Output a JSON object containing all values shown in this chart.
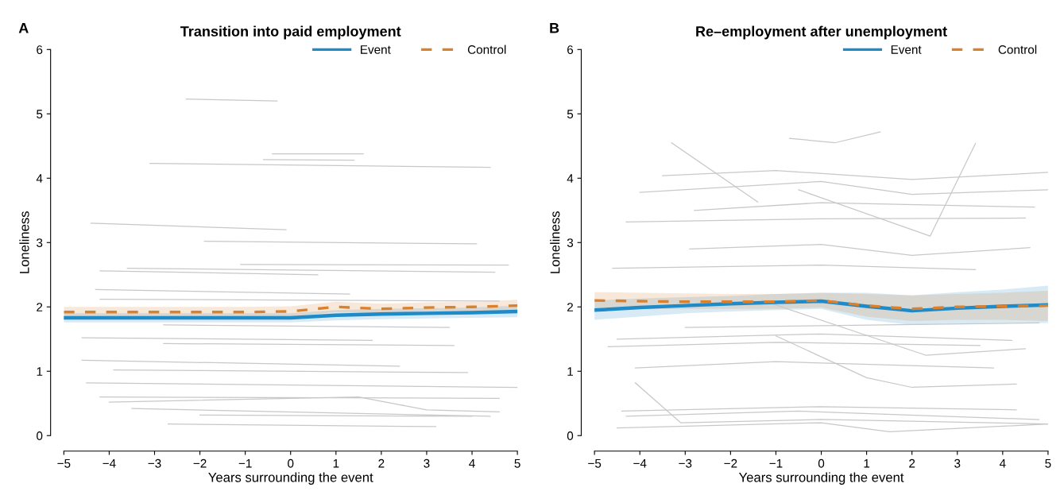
{
  "chart_data": [
    {
      "type": "line",
      "title": "Transition into paid employment",
      "annotations": [
        "A"
      ],
      "xlabel": "Years surrounding the event",
      "ylabel": "Loneliness",
      "xlim": [
        -5,
        5
      ],
      "xticks": [
        -5,
        -4,
        -3,
        -2,
        -1,
        0,
        1,
        2,
        3,
        4,
        5
      ],
      "ylim": [
        0,
        6
      ],
      "yticks": [
        0,
        1,
        2,
        3,
        4,
        5,
        6
      ],
      "grid": false,
      "legend": "top right",
      "x": [
        -5,
        -4,
        -3,
        -2,
        -1,
        0,
        1,
        2,
        3,
        4,
        5
      ],
      "series": [
        {
          "color": "#c8c8c8",
          "x": [
            -2.3,
            -0.3
          ],
          "values": [
            5.23,
            5.2
          ]
        },
        {
          "color": "#c8c8c8",
          "x": [
            -3.1,
            4.4
          ],
          "values": [
            4.23,
            4.17
          ]
        },
        {
          "color": "#c8c8c8",
          "x": [
            -0.4,
            1.6
          ],
          "values": [
            4.38,
            4.38
          ]
        },
        {
          "color": "#c8c8c8",
          "x": [
            -0.6,
            1.4
          ],
          "values": [
            4.29,
            4.28
          ]
        },
        {
          "color": "#c8c8c8",
          "x": [
            -4.4,
            -0.1
          ],
          "values": [
            3.3,
            3.2
          ]
        },
        {
          "color": "#c8c8c8",
          "x": [
            -1.9,
            4.1
          ],
          "values": [
            3.02,
            2.98
          ]
        },
        {
          "color": "#c8c8c8",
          "x": [
            -1.1,
            4.8
          ],
          "values": [
            2.66,
            2.65
          ]
        },
        {
          "color": "#c8c8c8",
          "x": [
            -4.2,
            0.6
          ],
          "values": [
            2.56,
            2.5
          ]
        },
        {
          "color": "#c8c8c8",
          "x": [
            -3.6,
            4.5
          ],
          "values": [
            2.6,
            2.54
          ]
        },
        {
          "color": "#c8c8c8",
          "x": [
            -4.3,
            1.3
          ],
          "values": [
            2.27,
            2.2
          ]
        },
        {
          "color": "#c8c8c8",
          "x": [
            -4.2,
            4.6
          ],
          "values": [
            2.12,
            2.09
          ]
        },
        {
          "color": "#c8c8c8",
          "x": [
            -2.8,
            3.5
          ],
          "values": [
            1.72,
            1.68
          ]
        },
        {
          "color": "#c8c8c8",
          "x": [
            -4.6,
            1.8
          ],
          "values": [
            1.52,
            1.48
          ]
        },
        {
          "color": "#c8c8c8",
          "x": [
            -2.8,
            3.6
          ],
          "values": [
            1.43,
            1.4
          ]
        },
        {
          "color": "#c8c8c8",
          "x": [
            -4.6,
            2.4
          ],
          "values": [
            1.17,
            1.08
          ]
        },
        {
          "color": "#c8c8c8",
          "x": [
            -3.9,
            3.9
          ],
          "values": [
            1.02,
            0.98
          ]
        },
        {
          "color": "#c8c8c8",
          "x": [
            -4.5,
            5
          ],
          "values": [
            0.82,
            0.75
          ]
        },
        {
          "color": "#c8c8c8",
          "x": [
            -4.2,
            4.6
          ],
          "values": [
            0.6,
            0.58
          ]
        },
        {
          "color": "#c8c8c8",
          "x": [
            -4.0,
            1.5,
            3.0,
            4.6
          ],
          "values": [
            0.52,
            0.6,
            0.4,
            0.37
          ]
        },
        {
          "color": "#c8c8c8",
          "x": [
            -3.5,
            4.4
          ],
          "values": [
            0.42,
            0.3
          ]
        },
        {
          "color": "#c8c8c8",
          "x": [
            -2.0,
            4.0
          ],
          "values": [
            0.32,
            0.3
          ]
        },
        {
          "color": "#c8c8c8",
          "x": [
            -2.7,
            3.2
          ],
          "values": [
            0.18,
            0.14
          ]
        },
        {
          "name": "Event",
          "color": "#1f8ac8",
          "line_style": "solid",
          "values": [
            1.83,
            1.83,
            1.83,
            1.83,
            1.83,
            1.83,
            1.87,
            1.89,
            1.9,
            1.91,
            1.93
          ],
          "lower": [
            1.76,
            1.76,
            1.76,
            1.76,
            1.76,
            1.76,
            1.79,
            1.81,
            1.82,
            1.83,
            1.84
          ],
          "upper": [
            1.9,
            1.9,
            1.9,
            1.9,
            1.9,
            1.9,
            1.95,
            1.97,
            1.98,
            1.99,
            2.02
          ]
        },
        {
          "name": "Control",
          "color": "#d9812f",
          "line_style": "dashed",
          "values": [
            1.92,
            1.92,
            1.92,
            1.92,
            1.92,
            1.93,
            2.0,
            1.97,
            1.99,
            2.0,
            2.02
          ],
          "lower": [
            1.84,
            1.84,
            1.84,
            1.84,
            1.84,
            1.85,
            1.92,
            1.89,
            1.91,
            1.92,
            1.93
          ],
          "upper": [
            2.0,
            2.0,
            2.0,
            2.0,
            2.0,
            2.01,
            2.08,
            2.05,
            2.07,
            2.08,
            2.11
          ]
        }
      ]
    },
    {
      "type": "line",
      "title": "Re–employment after unemployment",
      "annotations": [
        "B"
      ],
      "xlabel": "Years surrounding the event",
      "ylabel": "Loneliness",
      "xlim": [
        -5,
        5
      ],
      "xticks": [
        -5,
        -4,
        -3,
        -2,
        -1,
        0,
        1,
        2,
        3,
        4,
        5
      ],
      "ylim": [
        0,
        6
      ],
      "yticks": [
        0,
        1,
        2,
        3,
        4,
        5,
        6
      ],
      "grid": false,
      "legend": "top right",
      "x": [
        -5,
        -4,
        -3,
        -2,
        -1,
        0,
        1,
        2,
        3,
        4,
        5
      ],
      "series": [
        {
          "color": "#c8c8c8",
          "x": [
            -3.3,
            -1.4
          ],
          "values": [
            4.55,
            3.63
          ]
        },
        {
          "color": "#c8c8c8",
          "x": [
            -0.7,
            0.3,
            1.3
          ],
          "values": [
            4.62,
            4.55,
            4.72
          ]
        },
        {
          "color": "#c8c8c8",
          "x": [
            -0.5,
            2.4,
            3.4
          ],
          "values": [
            3.82,
            3.1,
            4.54
          ]
        },
        {
          "color": "#c8c8c8",
          "x": [
            -3.5,
            -1.0,
            2.0,
            5.0
          ],
          "values": [
            4.04,
            4.12,
            3.98,
            4.09
          ]
        },
        {
          "color": "#c8c8c8",
          "x": [
            -4.0,
            0.0,
            2.0,
            5.0
          ],
          "values": [
            3.78,
            3.95,
            3.75,
            3.82
          ]
        },
        {
          "color": "#c8c8c8",
          "x": [
            -2.8,
            0.0,
            4.7
          ],
          "values": [
            3.5,
            3.62,
            3.55
          ]
        },
        {
          "color": "#c8c8c8",
          "x": [
            -4.3,
            0.0,
            4.5
          ],
          "values": [
            3.32,
            3.37,
            3.38
          ]
        },
        {
          "color": "#c8c8c8",
          "x": [
            -2.9,
            0.0,
            2.0,
            4.6
          ],
          "values": [
            2.9,
            2.97,
            2.8,
            2.92
          ]
        },
        {
          "color": "#c8c8c8",
          "x": [
            -4.6,
            0.0,
            3.4
          ],
          "values": [
            2.6,
            2.65,
            2.58
          ]
        },
        {
          "color": "#c8c8c8",
          "x": [
            -1.3,
            2.3,
            4.5
          ],
          "values": [
            2.1,
            1.25,
            1.35
          ]
        },
        {
          "color": "#c8c8c8",
          "x": [
            -3.0,
            4.8
          ],
          "values": [
            1.68,
            1.75
          ]
        },
        {
          "color": "#c8c8c8",
          "x": [
            -4.5,
            0.0,
            4.2
          ],
          "values": [
            1.5,
            1.58,
            1.48
          ]
        },
        {
          "color": "#c8c8c8",
          "x": [
            -4.7,
            -1.0,
            3.5
          ],
          "values": [
            1.38,
            1.45,
            1.4
          ]
        },
        {
          "color": "#c8c8c8",
          "x": [
            -4.1,
            -1.0,
            3.8
          ],
          "values": [
            1.05,
            1.15,
            1.05
          ]
        },
        {
          "color": "#c8c8c8",
          "x": [
            -1.0,
            1.0,
            2.0,
            4.3
          ],
          "values": [
            1.55,
            0.9,
            0.75,
            0.8
          ]
        },
        {
          "color": "#c8c8c8",
          "x": [
            -4.1,
            -3.1,
            0.0,
            5.0
          ],
          "values": [
            0.82,
            0.2,
            0.25,
            0.18
          ]
        },
        {
          "color": "#c8c8c8",
          "x": [
            -4.4,
            0.0,
            4.3
          ],
          "values": [
            0.38,
            0.45,
            0.4
          ]
        },
        {
          "color": "#c8c8c8",
          "x": [
            -4.3,
            -0.5,
            4.8
          ],
          "values": [
            0.3,
            0.38,
            0.25
          ]
        },
        {
          "color": "#c8c8c8",
          "x": [
            -4.5,
            0.0,
            1.5,
            5.0
          ],
          "values": [
            0.12,
            0.2,
            0.06,
            0.18
          ]
        },
        {
          "name": "Event",
          "color": "#1f8ac8",
          "line_style": "solid",
          "values": [
            1.95,
            1.99,
            2.02,
            2.05,
            2.07,
            2.09,
            2.01,
            1.94,
            1.98,
            2.01,
            2.03
          ],
          "lower": [
            1.8,
            1.85,
            1.9,
            1.93,
            1.95,
            1.97,
            1.8,
            1.72,
            1.74,
            1.75,
            1.75
          ],
          "upper": [
            2.1,
            2.13,
            2.15,
            2.17,
            2.2,
            2.22,
            2.22,
            2.18,
            2.23,
            2.27,
            2.33
          ]
        },
        {
          "name": "Control",
          "color": "#d9812f",
          "line_style": "dashed",
          "values": [
            2.1,
            2.09,
            2.08,
            2.08,
            2.08,
            2.1,
            2.02,
            1.97,
            2.0,
            2.01,
            2.02
          ],
          "lower": [
            1.97,
            1.97,
            1.97,
            1.97,
            1.97,
            1.99,
            1.85,
            1.78,
            1.8,
            1.8,
            1.78
          ],
          "upper": [
            2.23,
            2.22,
            2.21,
            2.2,
            2.2,
            2.22,
            2.2,
            2.18,
            2.2,
            2.22,
            2.25
          ]
        }
      ]
    }
  ]
}
